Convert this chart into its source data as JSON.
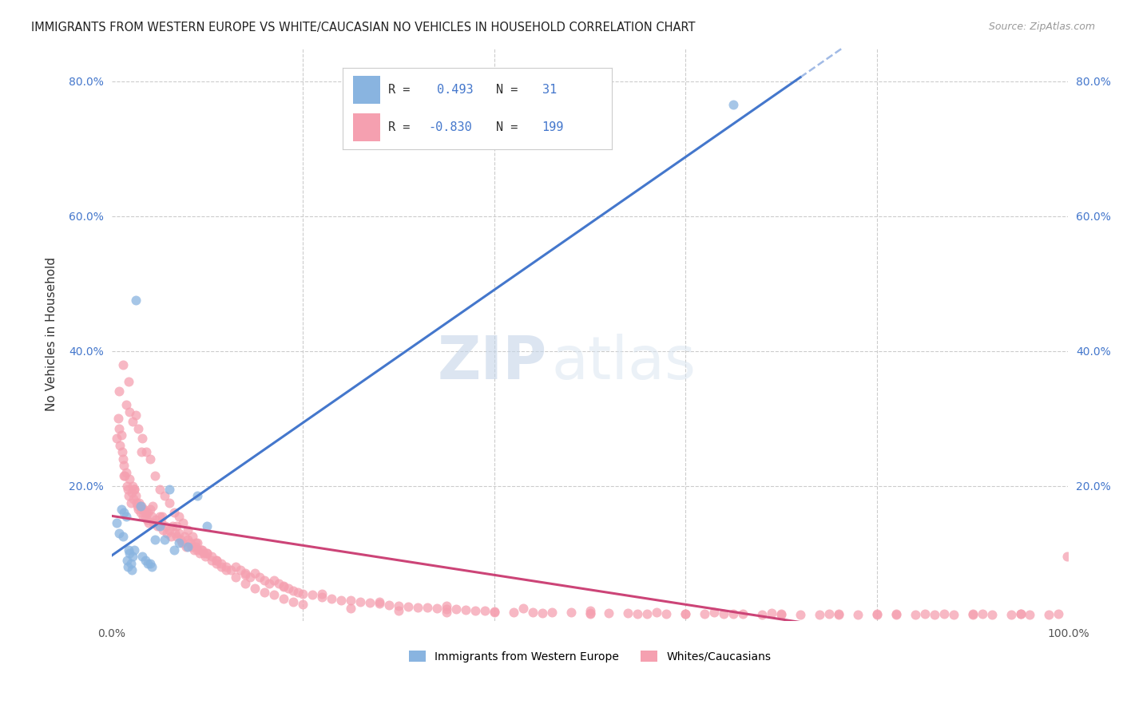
{
  "title": "IMMIGRANTS FROM WESTERN EUROPE VS WHITE/CAUCASIAN NO VEHICLES IN HOUSEHOLD CORRELATION CHART",
  "source": "Source: ZipAtlas.com",
  "ylabel": "No Vehicles in Household",
  "legend_label_blue": "Immigrants from Western Europe",
  "legend_label_pink": "Whites/Caucasians",
  "watermark_zip": "ZIP",
  "watermark_atlas": "atlas",
  "blue_color": "#89b4e0",
  "blue_line_color": "#4477cc",
  "pink_color": "#f5a0b0",
  "pink_line_color": "#cc4477",
  "blue_scatter_x": [
    0.005,
    0.008,
    0.01,
    0.012,
    0.013,
    0.015,
    0.016,
    0.017,
    0.018,
    0.019,
    0.02,
    0.021,
    0.022,
    0.024,
    0.025,
    0.03,
    0.032,
    0.035,
    0.038,
    0.04,
    0.042,
    0.045,
    0.05,
    0.055,
    0.06,
    0.065,
    0.07,
    0.08,
    0.09,
    0.1,
    0.65
  ],
  "blue_scatter_y": [
    0.145,
    0.13,
    0.165,
    0.125,
    0.16,
    0.155,
    0.09,
    0.08,
    0.105,
    0.1,
    0.085,
    0.075,
    0.095,
    0.105,
    0.475,
    0.17,
    0.095,
    0.09,
    0.085,
    0.085,
    0.08,
    0.12,
    0.14,
    0.12,
    0.195,
    0.105,
    0.115,
    0.11,
    0.185,
    0.14,
    0.765
  ],
  "pink_scatter_x": [
    0.005,
    0.007,
    0.008,
    0.009,
    0.01,
    0.011,
    0.012,
    0.013,
    0.014,
    0.015,
    0.016,
    0.017,
    0.018,
    0.019,
    0.02,
    0.021,
    0.022,
    0.023,
    0.024,
    0.025,
    0.026,
    0.027,
    0.028,
    0.029,
    0.03,
    0.031,
    0.032,
    0.033,
    0.034,
    0.035,
    0.036,
    0.037,
    0.038,
    0.039,
    0.04,
    0.042,
    0.044,
    0.046,
    0.048,
    0.05,
    0.052,
    0.054,
    0.056,
    0.058,
    0.06,
    0.062,
    0.064,
    0.066,
    0.068,
    0.07,
    0.072,
    0.074,
    0.076,
    0.078,
    0.08,
    0.082,
    0.084,
    0.086,
    0.088,
    0.09,
    0.092,
    0.094,
    0.096,
    0.098,
    0.1,
    0.105,
    0.11,
    0.115,
    0.12,
    0.125,
    0.13,
    0.135,
    0.14,
    0.145,
    0.15,
    0.155,
    0.16,
    0.165,
    0.17,
    0.175,
    0.18,
    0.185,
    0.19,
    0.195,
    0.2,
    0.21,
    0.22,
    0.23,
    0.24,
    0.25,
    0.26,
    0.27,
    0.28,
    0.29,
    0.3,
    0.31,
    0.32,
    0.33,
    0.34,
    0.35,
    0.36,
    0.37,
    0.38,
    0.39,
    0.4,
    0.42,
    0.44,
    0.46,
    0.48,
    0.5,
    0.52,
    0.54,
    0.56,
    0.58,
    0.6,
    0.62,
    0.64,
    0.66,
    0.68,
    0.7,
    0.72,
    0.74,
    0.76,
    0.78,
    0.8,
    0.82,
    0.84,
    0.86,
    0.88,
    0.9,
    0.92,
    0.94,
    0.96,
    0.98,
    0.999,
    0.008,
    0.012,
    0.015,
    0.018,
    0.022,
    0.025,
    0.028,
    0.032,
    0.036,
    0.04,
    0.045,
    0.05,
    0.055,
    0.06,
    0.065,
    0.07,
    0.075,
    0.08,
    0.085,
    0.09,
    0.095,
    0.1,
    0.105,
    0.11,
    0.115,
    0.12,
    0.13,
    0.14,
    0.15,
    0.16,
    0.17,
    0.18,
    0.19,
    0.2,
    0.25,
    0.3,
    0.35,
    0.4,
    0.45,
    0.5,
    0.55,
    0.6,
    0.65,
    0.7,
    0.75,
    0.8,
    0.85,
    0.9,
    0.95,
    0.99,
    0.013,
    0.019,
    0.024,
    0.031,
    0.043,
    0.053,
    0.068,
    0.088,
    0.11,
    0.14,
    0.18,
    0.22,
    0.28,
    0.35,
    0.43,
    0.5,
    0.57,
    0.63,
    0.69,
    0.76,
    0.82,
    0.87,
    0.91,
    0.95
  ],
  "pink_scatter_y": [
    0.27,
    0.3,
    0.285,
    0.26,
    0.275,
    0.25,
    0.24,
    0.23,
    0.215,
    0.22,
    0.2,
    0.195,
    0.185,
    0.21,
    0.175,
    0.19,
    0.2,
    0.18,
    0.195,
    0.185,
    0.175,
    0.17,
    0.165,
    0.175,
    0.16,
    0.17,
    0.165,
    0.155,
    0.165,
    0.155,
    0.16,
    0.15,
    0.16,
    0.145,
    0.165,
    0.155,
    0.145,
    0.15,
    0.14,
    0.155,
    0.145,
    0.135,
    0.14,
    0.13,
    0.135,
    0.125,
    0.14,
    0.13,
    0.125,
    0.13,
    0.12,
    0.115,
    0.125,
    0.11,
    0.12,
    0.115,
    0.11,
    0.105,
    0.115,
    0.105,
    0.1,
    0.105,
    0.1,
    0.095,
    0.1,
    0.095,
    0.09,
    0.085,
    0.08,
    0.075,
    0.08,
    0.075,
    0.07,
    0.065,
    0.07,
    0.065,
    0.06,
    0.055,
    0.06,
    0.055,
    0.05,
    0.048,
    0.045,
    0.042,
    0.04,
    0.038,
    0.035,
    0.033,
    0.03,
    0.03,
    0.028,
    0.027,
    0.025,
    0.023,
    0.022,
    0.021,
    0.02,
    0.019,
    0.018,
    0.017,
    0.017,
    0.016,
    0.015,
    0.015,
    0.014,
    0.013,
    0.013,
    0.012,
    0.012,
    0.011,
    0.011,
    0.011,
    0.01,
    0.01,
    0.01,
    0.01,
    0.01,
    0.01,
    0.009,
    0.009,
    0.009,
    0.009,
    0.009,
    0.009,
    0.009,
    0.009,
    0.009,
    0.009,
    0.009,
    0.009,
    0.009,
    0.009,
    0.009,
    0.009,
    0.095,
    0.34,
    0.38,
    0.32,
    0.355,
    0.295,
    0.305,
    0.285,
    0.27,
    0.25,
    0.24,
    0.215,
    0.195,
    0.185,
    0.175,
    0.16,
    0.155,
    0.145,
    0.135,
    0.125,
    0.115,
    0.105,
    0.1,
    0.09,
    0.085,
    0.08,
    0.075,
    0.065,
    0.055,
    0.048,
    0.042,
    0.038,
    0.033,
    0.028,
    0.024,
    0.018,
    0.015,
    0.013,
    0.012,
    0.011,
    0.01,
    0.01,
    0.01,
    0.01,
    0.01,
    0.01,
    0.01,
    0.01,
    0.01,
    0.01,
    0.01,
    0.215,
    0.31,
    0.195,
    0.25,
    0.17,
    0.155,
    0.14,
    0.11,
    0.09,
    0.068,
    0.052,
    0.04,
    0.028,
    0.022,
    0.018,
    0.015,
    0.013,
    0.012,
    0.011,
    0.01,
    0.01,
    0.01,
    0.01,
    0.01
  ],
  "xlim": [
    0.0,
    1.0
  ],
  "ylim": [
    0.0,
    0.85
  ],
  "background_color": "#ffffff",
  "grid_color": "#cccccc"
}
